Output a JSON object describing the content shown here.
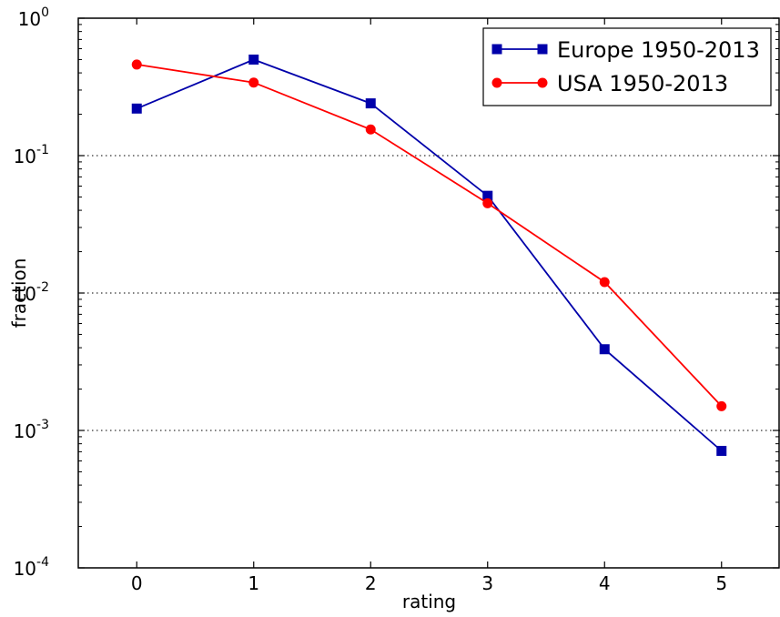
{
  "chart_data": {
    "type": "line",
    "title": "",
    "xlabel": "rating",
    "ylabel": "fraction",
    "y_scale": "log",
    "xlim": [
      -0.5,
      5.5
    ],
    "ylim": [
      0.0001,
      1
    ],
    "x": [
      0,
      1,
      2,
      3,
      4,
      5
    ],
    "x_ticks": [
      0,
      1,
      2,
      3,
      4,
      5
    ],
    "x_tick_labels": [
      "0",
      "1",
      "2",
      "3",
      "4",
      "5"
    ],
    "y_ticks": [
      {
        "value": 0.0001,
        "base": "10",
        "exp": "-4"
      },
      {
        "value": 0.001,
        "base": "10",
        "exp": "-3"
      },
      {
        "value": 0.01,
        "base": "10",
        "exp": "-2"
      },
      {
        "value": 0.1,
        "base": "10",
        "exp": "-1"
      },
      {
        "value": 1,
        "base": "10",
        "exp": "0"
      }
    ],
    "grid": "horizontal dotted at major y ticks",
    "legend_position": "top-right",
    "series": [
      {
        "name": "Europe 1950-2013",
        "color": "#0000aa",
        "marker": "square",
        "values": [
          0.22,
          0.5,
          0.24,
          0.051,
          0.0039,
          0.00071
        ]
      },
      {
        "name": "USA 1950-2013",
        "color": "#ff0000",
        "marker": "circle",
        "values": [
          0.46,
          0.34,
          0.155,
          0.045,
          0.012,
          0.0015
        ]
      }
    ]
  }
}
